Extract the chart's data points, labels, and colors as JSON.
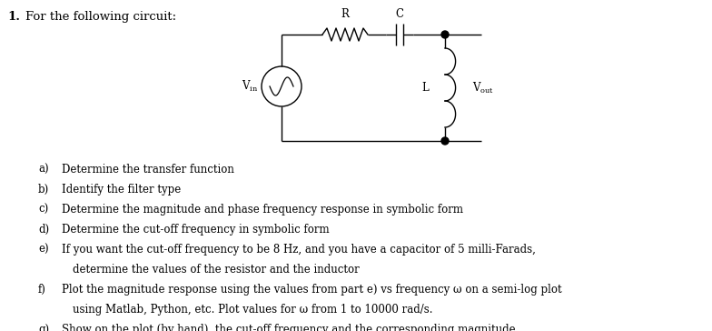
{
  "title_number": "1.",
  "title_text": "For the following circuit:",
  "items": [
    {
      "label": "a)",
      "text": "Determine the transfer function",
      "indent2": ""
    },
    {
      "label": "b)",
      "text": "Identify the filter type",
      "indent2": ""
    },
    {
      "label": "c)",
      "text": "Determine the magnitude and phase frequency response in symbolic form",
      "indent2": ""
    },
    {
      "label": "d)",
      "text": "Determine the cut-off frequency in symbolic form",
      "indent2": ""
    },
    {
      "label": "e)",
      "text": "If you want the cut-off frequency to be 8 Hz, and you have a capacitor of 5 milli-Farads,",
      "indent2": "determine the values of the resistor and the inductor"
    },
    {
      "label": "f)",
      "text": "Plot the magnitude response using the values from part e) vs frequency ω on a semi-log plot",
      "indent2": "using Matlab, Python, etc. Plot values for ω from 1 to 10000 rad/s."
    },
    {
      "label": "g)",
      "text": "Show on the plot (by hand), the cut-off frequency and the corresponding magnitude",
      "indent2": ""
    }
  ],
  "background_color": "#ffffff",
  "text_color": "#000000",
  "font_size": 8.5,
  "title_font_size": 9.5,
  "circuit": {
    "r_label": "R",
    "c_label": "C",
    "l_label": "L",
    "vout_label": "V",
    "vout_sub": "out"
  }
}
